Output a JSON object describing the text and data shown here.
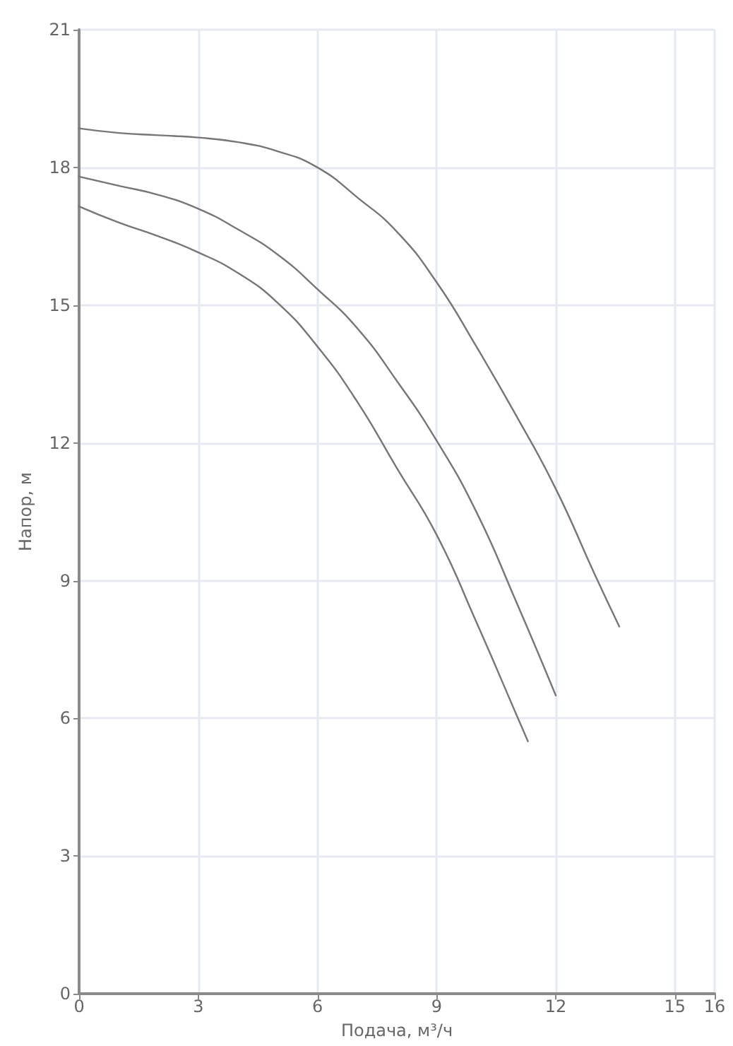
{
  "chart_data": {
    "type": "line",
    "xlabel": "Подача, м³/ч",
    "ylabel": "Напор, м",
    "xlim": [
      0,
      16
    ],
    "xticks": [
      0,
      3,
      6,
      9,
      12,
      15,
      16
    ],
    "ylim": [
      0,
      21
    ],
    "yticks": [
      0,
      3,
      6,
      9,
      12,
      15,
      18,
      21
    ],
    "grid": true,
    "marker": "none",
    "line_style": "solid",
    "series": [
      {
        "color": "#767676",
        "x": [
          0,
          1,
          2,
          3,
          4,
          5,
          6,
          7,
          8,
          9,
          10,
          11,
          12,
          13,
          13.6
        ],
        "values": [
          18.85,
          18.75,
          18.7,
          18.65,
          18.55,
          18.35,
          18.0,
          17.35,
          16.6,
          15.5,
          14.1,
          12.6,
          11.0,
          9.1,
          8.0
        ]
      },
      {
        "color": "#767676",
        "x": [
          0,
          1,
          2,
          3,
          4,
          5,
          6,
          7,
          8,
          9,
          10,
          11,
          12
        ],
        "values": [
          17.8,
          17.6,
          17.4,
          17.1,
          16.65,
          16.1,
          15.35,
          14.5,
          13.35,
          12.05,
          10.5,
          8.55,
          6.5
        ]
      },
      {
        "color": "#767676",
        "x": [
          0,
          1,
          2,
          3,
          4,
          5,
          6,
          7,
          8,
          9,
          10,
          11,
          11.3
        ],
        "values": [
          17.15,
          16.8,
          16.5,
          16.15,
          15.7,
          15.05,
          14.1,
          12.9,
          11.45,
          10.0,
          8.1,
          6.1,
          5.5
        ]
      }
    ]
  }
}
